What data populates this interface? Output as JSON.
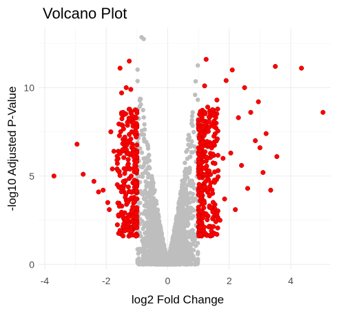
{
  "chart_data": {
    "type": "scatter",
    "title": "Volcano Plot",
    "xlabel": "log2 Fold Change",
    "ylabel": "-log10 Adjusted P-Value",
    "xlim": [
      -4.2,
      5.3
    ],
    "ylim": [
      -0.3,
      13.4
    ],
    "x_ticks": [
      -4,
      -2,
      0,
      2,
      4
    ],
    "y_ticks": [
      0,
      5,
      10
    ],
    "grid": true,
    "legend": "none",
    "colors": {
      "significant": "#ff0000",
      "not_significant": "#bebebe"
    },
    "significance_threshold": {
      "abs_log2fc": 1
    },
    "series": [
      {
        "values": [
          [
            -3.7,
            5.0
          ],
          [
            -2.95,
            6.8
          ],
          [
            -2.75,
            5.1
          ],
          [
            -2.25,
            4.1
          ],
          [
            -2.1,
            4.2
          ],
          [
            -1.95,
            3.5
          ],
          [
            -1.9,
            3.1
          ],
          [
            -1.85,
            7.5
          ],
          [
            -1.8,
            5.4
          ],
          [
            -1.75,
            6.4
          ],
          [
            -1.6,
            2.8
          ],
          [
            -1.55,
            11.1
          ],
          [
            -1.5,
            9.7
          ],
          [
            -1.45,
            8.6
          ],
          [
            -1.4,
            1.9
          ],
          [
            -1.35,
            10.0
          ],
          [
            -1.3,
            3.5
          ],
          [
            -1.25,
            11.5
          ],
          [
            -1.2,
            9.9
          ],
          [
            -1.15,
            8.4
          ],
          [
            -1.1,
            6.3
          ],
          [
            -1.08,
            2.2
          ],
          [
            -1.05,
            4.6
          ],
          [
            1.05,
            2.1
          ],
          [
            1.1,
            4.0
          ],
          [
            1.15,
            6.9
          ],
          [
            1.2,
            10.1
          ],
          [
            1.25,
            11.6
          ],
          [
            1.3,
            8.9
          ],
          [
            1.4,
            3.2
          ],
          [
            1.5,
            7.8
          ],
          [
            1.6,
            9.3
          ],
          [
            1.7,
            2.5
          ],
          [
            1.8,
            6.0
          ],
          [
            1.9,
            10.4
          ],
          [
            2.1,
            11.0
          ],
          [
            2.2,
            3.1
          ],
          [
            2.3,
            8.3
          ],
          [
            2.4,
            5.6
          ],
          [
            2.5,
            10.0
          ],
          [
            2.6,
            4.3
          ],
          [
            2.7,
            8.6
          ],
          [
            2.85,
            7.0
          ],
          [
            2.95,
            9.2
          ],
          [
            3.0,
            6.6
          ],
          [
            3.1,
            5.2
          ],
          [
            3.2,
            7.4
          ],
          [
            3.35,
            4.2
          ],
          [
            3.5,
            11.2
          ],
          [
            3.55,
            6.1
          ],
          [
            4.35,
            11.1
          ],
          [
            5.05,
            8.6
          ],
          [
            1.85,
            3.7
          ],
          [
            2.05,
            6.3
          ],
          [
            -2.4,
            4.7
          ],
          [
            -1.65,
            5.9
          ],
          [
            -1.5,
            7.9
          ],
          [
            -1.2,
            7.1
          ],
          [
            -1.3,
            5.6
          ],
          [
            -1.15,
            3.0
          ]
        ]
      }
    ]
  }
}
